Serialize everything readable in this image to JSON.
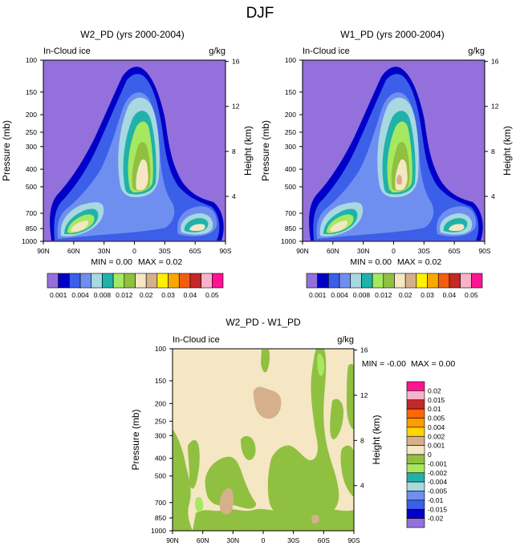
{
  "figure": {
    "title": "DJF"
  },
  "colors": {
    "panel_scale": [
      "#9370db",
      "#0000c8",
      "#3b5fe8",
      "#6f8ff0",
      "#a8d8e0",
      "#20b2aa",
      "#a6e860",
      "#90c040",
      "#f5e6c4",
      "#d6b08a",
      "#fff200",
      "#f9a800",
      "#f25e0f",
      "#c42828",
      "#f7b4c8",
      "#ff1493"
    ],
    "diff_scale": [
      "#9370db",
      "#0000c8",
      "#3b5fe8",
      "#6f8ff0",
      "#a8d8e0",
      "#20b2aa",
      "#a6e860",
      "#90c040",
      "#f5e6c4",
      "#d6b08a",
      "#ffd400",
      "#ff9c00",
      "#ff6600",
      "#c42828",
      "#f7b4c8",
      "#ff1493"
    ]
  },
  "chart_data": [
    {
      "type": "contour",
      "title": "W2_PD (yrs 2000-2004)",
      "variable_label": "In-Cloud ice",
      "units": "g/kg",
      "xlabel": "",
      "ylabel": "Pressure (mb)",
      "y2label": "Height (km)",
      "x_ticks": [
        "90N",
        "60N",
        "30N",
        "0",
        "30S",
        "60S",
        "90S"
      ],
      "x_values": [
        90,
        60,
        30,
        0,
        -30,
        -60,
        -90
      ],
      "y_ticks": [
        100,
        150,
        200,
        250,
        300,
        400,
        500,
        700,
        850,
        1000
      ],
      "y_range": [
        100,
        1000
      ],
      "y2_ticks": [
        16,
        12,
        8,
        4
      ],
      "min_text": "MIN =   0.00",
      "max_text": "MAX =   0.02",
      "colorbar_labels": [
        "0.001",
        "0.004",
        "0.008",
        "0.012",
        "0.02",
        "0.03",
        "0.04",
        "0.05"
      ],
      "levels": [
        0.001,
        0.002,
        0.004,
        0.006,
        0.008,
        0.01,
        0.012,
        0.015,
        0.02,
        0.025,
        0.03,
        0.035,
        0.04,
        0.045,
        0.05
      ]
    },
    {
      "type": "contour",
      "title": "W1_PD (yrs 2000-2004)",
      "variable_label": "In-Cloud ice",
      "units": "g/kg",
      "xlabel": "",
      "ylabel": "Pressure (mb)",
      "y2label": "Height (km)",
      "x_ticks": [
        "90N",
        "60N",
        "30N",
        "0",
        "30S",
        "60S",
        "90S"
      ],
      "x_values": [
        90,
        60,
        30,
        0,
        -30,
        -60,
        -90
      ],
      "y_ticks": [
        100,
        150,
        200,
        250,
        300,
        400,
        500,
        700,
        850,
        1000
      ],
      "y_range": [
        100,
        1000
      ],
      "y2_ticks": [
        16,
        12,
        8,
        4
      ],
      "min_text": "MIN =   0.00",
      "max_text": "MAX =   0.02",
      "colorbar_labels": [
        "0.001",
        "0.004",
        "0.008",
        "0.012",
        "0.02",
        "0.03",
        "0.04",
        "0.05"
      ],
      "levels": [
        0.001,
        0.002,
        0.004,
        0.006,
        0.008,
        0.01,
        0.012,
        0.015,
        0.02,
        0.025,
        0.03,
        0.035,
        0.04,
        0.045,
        0.05
      ]
    },
    {
      "type": "contour",
      "title": "W2_PD - W1_PD",
      "variable_label": "In-Cloud ice",
      "units": "g/kg",
      "xlabel": "",
      "ylabel": "Pressure (mb)",
      "y2label": "Height (km)",
      "x_ticks": [
        "90N",
        "60N",
        "30N",
        "0",
        "30S",
        "60S",
        "90S"
      ],
      "x_values": [
        90,
        60,
        30,
        0,
        -30,
        -60,
        -90
      ],
      "y_ticks": [
        100,
        150,
        200,
        250,
        300,
        400,
        500,
        700,
        850,
        1000
      ],
      "y_range": [
        100,
        1000
      ],
      "y2_ticks": [
        16,
        12,
        8,
        4
      ],
      "min_text": "MIN =  -0.00",
      "max_text": "MAX =   0.00",
      "colorbar_labels": [
        "0.02",
        "0.015",
        "0.01",
        "0.005",
        "0.004",
        "0.002",
        "0.001",
        "0",
        "-0.001",
        "-0.002",
        "-0.004",
        "-0.005",
        "-0.01",
        "-0.015",
        "-0.02"
      ],
      "levels": [
        0.02,
        0.015,
        0.01,
        0.005,
        0.004,
        0.002,
        0.001,
        0,
        -0.001,
        -0.002,
        -0.004,
        -0.005,
        -0.01,
        -0.015,
        -0.02
      ]
    }
  ]
}
